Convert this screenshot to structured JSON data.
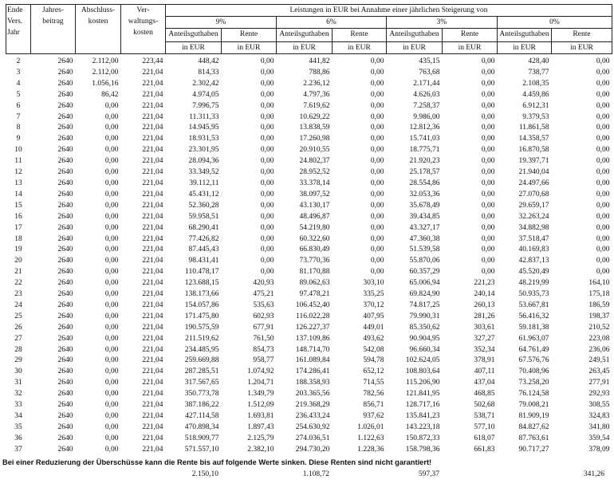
{
  "header": {
    "col_year": [
      "Ende",
      "Vers.",
      "Jahr"
    ],
    "col_beitrag": [
      "Jahres-",
      "beitrag"
    ],
    "col_abschluss": [
      "Abschluss-",
      "kosten"
    ],
    "col_verwaltung": [
      "Ver-",
      "waltungs-",
      "kosten"
    ],
    "leistungen": "Leistungen in EUR bei Annahme einer jährlichen Steigerung von",
    "rates": [
      "9%",
      "6%",
      "3%",
      "0%"
    ],
    "sub_anteil": "Anteilsguthaben",
    "sub_rente": "Rente",
    "unit": "in EUR"
  },
  "rows": [
    [
      "2",
      "2640",
      "2.112,00",
      "223,44",
      "448,42",
      "0,00",
      "441,82",
      "0,00",
      "435,15",
      "0,00",
      "428,40",
      "0,00"
    ],
    [
      "3",
      "2640",
      "2.112,00",
      "221,04",
      "814,33",
      "0,00",
      "788,86",
      "0,00",
      "763,68",
      "0,00",
      "738,77",
      "0,00"
    ],
    [
      "4",
      "2640",
      "1.056,16",
      "221,04",
      "2.302,42",
      "0,00",
      "2.236,12",
      "0,00",
      "2.171,44",
      "0,00",
      "2.108,35",
      "0,00"
    ],
    [
      "5",
      "2640",
      "86,42",
      "221,04",
      "4.974,05",
      "0,00",
      "4.797,36",
      "0,00",
      "4.626,03",
      "0,00",
      "4.459,86",
      "0,00"
    ],
    [
      "6",
      "2640",
      "0,00",
      "221,04",
      "7.996,75",
      "0,00",
      "7.619,62",
      "0,00",
      "7.258,37",
      "0,00",
      "6.912,31",
      "0,00"
    ],
    [
      "7",
      "2640",
      "0,00",
      "221,04",
      "11.311,33",
      "0,00",
      "10.629,22",
      "0,00",
      "9.986,00",
      "0,00",
      "9.379,53",
      "0,00"
    ],
    [
      "8",
      "2640",
      "0,00",
      "221,04",
      "14.945,95",
      "0,00",
      "13.838,59",
      "0,00",
      "12.812,36",
      "0,00",
      "11.861,58",
      "0,00"
    ],
    [
      "9",
      "2640",
      "0,00",
      "221,04",
      "18.931,53",
      "0,00",
      "17.260,98",
      "0,00",
      "15.741,03",
      "0,00",
      "14.358,57",
      "0,00"
    ],
    [
      "10",
      "2640",
      "0,00",
      "221,04",
      "23.301,95",
      "0,00",
      "20.910,55",
      "0,00",
      "18.775,71",
      "0,00",
      "16.870,58",
      "0,00"
    ],
    [
      "11",
      "2640",
      "0,00",
      "221,04",
      "28.094,36",
      "0,00",
      "24.802,37",
      "0,00",
      "21.920,23",
      "0,00",
      "19.397,71",
      "0,00"
    ],
    [
      "12",
      "2640",
      "0,00",
      "221,04",
      "33.349,52",
      "0,00",
      "28.952,52",
      "0,00",
      "25.178,57",
      "0,00",
      "21.940,04",
      "0,00"
    ],
    [
      "13",
      "2640",
      "0,00",
      "221,04",
      "39.112,11",
      "0,00",
      "33.378,14",
      "0,00",
      "28.554,86",
      "0,00",
      "24.497,66",
      "0,00"
    ],
    [
      "14",
      "2640",
      "0,00",
      "221,04",
      "45.431,12",
      "0,00",
      "38.097,52",
      "0,00",
      "32.053,36",
      "0,00",
      "27.070,68",
      "0,00"
    ],
    [
      "15",
      "2640",
      "0,00",
      "221,04",
      "52.360,28",
      "0,00",
      "43.130,17",
      "0,00",
      "35.678,49",
      "0,00",
      "29.659,17",
      "0,00"
    ],
    [
      "16",
      "2640",
      "0,00",
      "221,04",
      "59.958,51",
      "0,00",
      "48.496,87",
      "0,00",
      "39.434,85",
      "0,00",
      "32.263,24",
      "0,00"
    ],
    [
      "17",
      "2640",
      "0,00",
      "221,04",
      "68.290,41",
      "0,00",
      "54.219,80",
      "0,00",
      "43.327,17",
      "0,00",
      "34.882,98",
      "0,00"
    ],
    [
      "18",
      "2640",
      "0,00",
      "221,04",
      "77.426,82",
      "0,00",
      "60.322,60",
      "0,00",
      "47.360,38",
      "0,00",
      "37.518,47",
      "0,00"
    ],
    [
      "19",
      "2640",
      "0,00",
      "221,04",
      "87.445,43",
      "0,00",
      "66.830,49",
      "0,00",
      "51.539,58",
      "0,00",
      "40.169,83",
      "0,00"
    ],
    [
      "20",
      "2640",
      "0,00",
      "221,04",
      "98.431,41",
      "0,00",
      "73.770,36",
      "0,00",
      "55.870,06",
      "0,00",
      "42.837,13",
      "0,00"
    ],
    [
      "21",
      "2640",
      "0,00",
      "221,04",
      "110.478,17",
      "0,00",
      "81.170,88",
      "0,00",
      "60.357,29",
      "0,00",
      "45.520,49",
      "0,00"
    ],
    [
      "22",
      "2640",
      "0,00",
      "221,04",
      "123.688,15",
      "420,93",
      "89.062,63",
      "303,10",
      "65.006,94",
      "221,23",
      "48.219,99",
      "164,10"
    ],
    [
      "23",
      "2640",
      "0,00",
      "221,04",
      "138.173,66",
      "475,21",
      "97.478,21",
      "335,25",
      "69.824,90",
      "240,14",
      "50.935,73",
      "175,18"
    ],
    [
      "24",
      "2640",
      "0,00",
      "221,04",
      "154.057,86",
      "535,63",
      "106.452,40",
      "370,12",
      "74.817,25",
      "260,13",
      "53.667,81",
      "186,59"
    ],
    [
      "25",
      "2640",
      "0,00",
      "221,04",
      "171.475,80",
      "602,93",
      "116.022,28",
      "407,95",
      "79.990,31",
      "281,26",
      "56.416,32",
      "198,37"
    ],
    [
      "26",
      "2640",
      "0,00",
      "221,04",
      "190.575,59",
      "677,91",
      "126.227,37",
      "449,01",
      "85.350,62",
      "303,61",
      "59.181,38",
      "210,52"
    ],
    [
      "27",
      "2640",
      "0,00",
      "221,04",
      "211.519,62",
      "761,50",
      "137.109,86",
      "493,62",
      "90.904,95",
      "327,27",
      "61.963,07",
      "223,08"
    ],
    [
      "28",
      "2640",
      "0,00",
      "221,04",
      "234.485,95",
      "854,73",
      "148.714,70",
      "542,08",
      "96.660,34",
      "352,34",
      "64.761,49",
      "236,06"
    ],
    [
      "29",
      "2640",
      "0,00",
      "221,04",
      "259.669,88",
      "958,77",
      "161.089,84",
      "594,78",
      "102.624,05",
      "378,91",
      "67.576,76",
      "249,51"
    ],
    [
      "30",
      "2640",
      "0,00",
      "221,04",
      "287.285,51",
      "1.074,92",
      "174.286,41",
      "652,12",
      "108.803,64",
      "407,11",
      "70.408,96",
      "263,45"
    ],
    [
      "31",
      "2640",
      "0,00",
      "221,04",
      "317.567,65",
      "1.204,71",
      "188.358,93",
      "714,55",
      "115.206,90",
      "437,04",
      "73.258,20",
      "277,91"
    ],
    [
      "32",
      "2640",
      "0,00",
      "221,04",
      "350.773,78",
      "1.349,79",
      "203.365,56",
      "782,56",
      "121.841,95",
      "468,85",
      "76.124,58",
      "292,93"
    ],
    [
      "33",
      "2640",
      "0,00",
      "221,04",
      "387.186,22",
      "1.512,09",
      "219.368,29",
      "856,71",
      "128.717,16",
      "502,68",
      "79.008,21",
      "308,55"
    ],
    [
      "34",
      "2640",
      "0,00",
      "221,04",
      "427.114,58",
      "1.693,81",
      "236.433,24",
      "937,62",
      "135.841,23",
      "538,71",
      "81.909,19",
      "324,83"
    ],
    [
      "35",
      "2640",
      "0,00",
      "221,04",
      "470.898,34",
      "1.897,43",
      "254.630,92",
      "1.026,01",
      "143.223,18",
      "577,10",
      "84.827,62",
      "341,80"
    ],
    [
      "36",
      "2640",
      "0,00",
      "221,04",
      "518.909,77",
      "2.125,79",
      "274.036,51",
      "1.122,63",
      "150.872,33",
      "618,07",
      "87.763,61",
      "359,54"
    ],
    [
      "37",
      "2640",
      "0,00",
      "221,04",
      "571.557,10",
      "2.382,10",
      "294.730,20",
      "1.228,36",
      "158.798,36",
      "661,83",
      "90.717,27",
      "378,09"
    ]
  ],
  "footer": {
    "note": "Bei einer Reduzierung der Überschüsse kann die Rente bis auf folgende Werte sinken. Diese Renten sind nicht garantiert!",
    "min_rente": [
      "2.150,10",
      "1.108,72",
      "597,37",
      "341,26"
    ]
  }
}
